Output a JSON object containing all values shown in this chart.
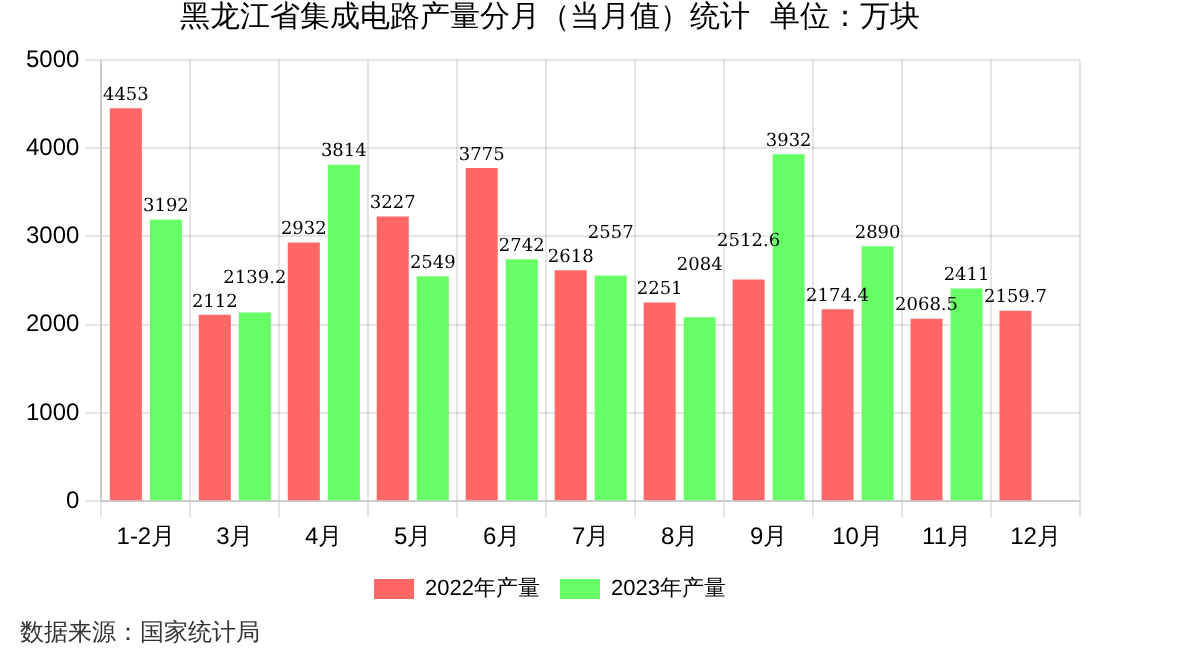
{
  "chart_data": {
    "type": "bar",
    "title": "黑龙江省集成电路产量分月（当月值）统计  单位：万块",
    "categories": [
      "1-2月",
      "3月",
      "4月",
      "5月",
      "6月",
      "7月",
      "8月",
      "9月",
      "10月",
      "11月",
      "12月"
    ],
    "series": [
      {
        "name": "2022年产量",
        "color": "#ff6666",
        "values": [
          4453,
          2112,
          2932,
          3227,
          3775,
          2618,
          2251,
          2512.6,
          2174.4,
          2068.5,
          2159.7
        ]
      },
      {
        "name": "2023年产量",
        "color": "#66ff66",
        "values": [
          3192,
          2139.2,
          3814,
          2549,
          2742,
          2557,
          2084,
          3932,
          2890,
          2411,
          null
        ]
      }
    ],
    "ylim": [
      0,
      5000
    ],
    "yticks": [
      0,
      1000,
      2000,
      3000,
      4000,
      5000
    ],
    "grid": true,
    "legend": "bottom",
    "data_labels": true,
    "annotations": [
      "数据来源：国家统计局"
    ]
  }
}
